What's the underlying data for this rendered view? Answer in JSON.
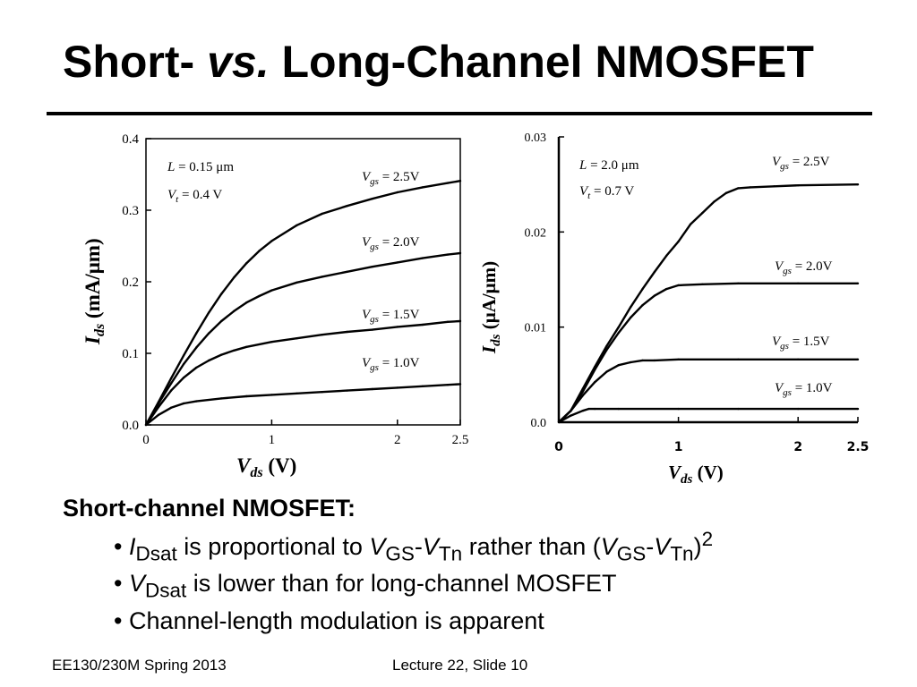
{
  "title": {
    "part1": "Short- ",
    "part2": "vs.",
    "part3": " Long-Channel NMOSFET"
  },
  "chart_data": [
    {
      "type": "line",
      "title": "",
      "xlabel": {
        "main": "V",
        "sub": "ds",
        "unit": " (V)"
      },
      "ylabel": {
        "main": "I",
        "sub": "ds",
        "unit": " (mA/μm)"
      },
      "xlim": [
        0,
        2.5
      ],
      "ylim": [
        0,
        0.4
      ],
      "x_ticks": [
        0,
        1,
        2,
        2.5
      ],
      "x_tick_labels": [
        "0",
        "1",
        "2",
        "2.5"
      ],
      "y_ticks": [
        0,
        0.1,
        0.2,
        0.3,
        0.4
      ],
      "y_tick_labels": [
        "0.0",
        "0.1",
        "0.2",
        "0.3",
        "0.4"
      ],
      "annotations": [
        "L = 0.15 μm",
        "V_t = 0.4 V"
      ],
      "series": [
        {
          "name": "Vgs = 2.5V",
          "x": [
            0,
            0.1,
            0.2,
            0.3,
            0.4,
            0.5,
            0.6,
            0.7,
            0.8,
            0.9,
            1.0,
            1.2,
            1.4,
            1.6,
            1.8,
            2.0,
            2.2,
            2.4,
            2.5
          ],
          "y": [
            0,
            0.032,
            0.065,
            0.097,
            0.128,
            0.157,
            0.183,
            0.206,
            0.226,
            0.243,
            0.257,
            0.279,
            0.295,
            0.306,
            0.316,
            0.325,
            0.332,
            0.338,
            0.341
          ]
        },
        {
          "name": "Vgs = 2.0V",
          "x": [
            0,
            0.1,
            0.2,
            0.3,
            0.4,
            0.5,
            0.6,
            0.7,
            0.8,
            0.9,
            1.0,
            1.2,
            1.4,
            1.6,
            1.8,
            2.0,
            2.2,
            2.4,
            2.5
          ],
          "y": [
            0,
            0.03,
            0.058,
            0.085,
            0.108,
            0.128,
            0.145,
            0.159,
            0.171,
            0.18,
            0.188,
            0.199,
            0.207,
            0.214,
            0.221,
            0.227,
            0.233,
            0.238,
            0.24
          ]
        },
        {
          "name": "Vgs = 1.5V",
          "x": [
            0,
            0.1,
            0.2,
            0.3,
            0.4,
            0.5,
            0.6,
            0.7,
            0.8,
            1.0,
            1.2,
            1.4,
            1.6,
            1.8,
            2.0,
            2.2,
            2.4,
            2.5
          ],
          "y": [
            0,
            0.025,
            0.048,
            0.066,
            0.08,
            0.09,
            0.098,
            0.104,
            0.109,
            0.116,
            0.121,
            0.126,
            0.13,
            0.133,
            0.137,
            0.14,
            0.144,
            0.145
          ]
        },
        {
          "name": "Vgs = 1.0V",
          "x": [
            0,
            0.1,
            0.2,
            0.3,
            0.4,
            0.6,
            0.8,
            1.0,
            1.2,
            1.4,
            1.6,
            1.8,
            2.0,
            2.2,
            2.4,
            2.5
          ],
          "y": [
            0,
            0.014,
            0.024,
            0.03,
            0.033,
            0.037,
            0.04,
            0.042,
            0.044,
            0.046,
            0.048,
            0.05,
            0.052,
            0.054,
            0.056,
            0.057
          ]
        }
      ]
    },
    {
      "type": "line",
      "title": "",
      "xlabel": {
        "main": "V",
        "sub": "ds",
        "unit": " (V)"
      },
      "ylabel": {
        "main": "I",
        "sub": "ds",
        "unit": " (μA/μm)"
      },
      "xlim": [
        0,
        2.5
      ],
      "ylim": [
        0,
        0.03
      ],
      "x_ticks": [
        0,
        1,
        2,
        2.5
      ],
      "x_tick_labels": [
        "0",
        "1",
        "2",
        "2.5"
      ],
      "y_ticks": [
        0,
        0.01,
        0.02,
        0.03
      ],
      "y_tick_labels": [
        "0.0",
        "0.01",
        "0.02",
        "0.03"
      ],
      "annotations": [
        "L = 2.0 μm",
        "V_t = 0.7 V"
      ],
      "series": [
        {
          "name": "Vgs = 2.5V",
          "x": [
            0,
            0.1,
            0.2,
            0.3,
            0.4,
            0.5,
            0.6,
            0.7,
            0.8,
            0.9,
            1.0,
            1.1,
            1.2,
            1.3,
            1.4,
            1.5,
            1.6,
            1.8,
            2.0,
            2.5
          ],
          "y": [
            0,
            0.0012,
            0.0035,
            0.0058,
            0.008,
            0.01,
            0.0121,
            0.014,
            0.0158,
            0.0175,
            0.019,
            0.0208,
            0.022,
            0.0232,
            0.0241,
            0.0246,
            0.0247,
            0.0248,
            0.0249,
            0.025
          ]
        },
        {
          "name": "Vgs = 2.0V",
          "x": [
            0,
            0.1,
            0.2,
            0.3,
            0.4,
            0.5,
            0.6,
            0.7,
            0.8,
            0.9,
            1.0,
            1.2,
            1.5,
            2.0,
            2.5
          ],
          "y": [
            0,
            0.0012,
            0.0032,
            0.0055,
            0.0076,
            0.0094,
            0.011,
            0.0123,
            0.0133,
            0.014,
            0.0144,
            0.0145,
            0.0146,
            0.0146,
            0.0146
          ]
        },
        {
          "name": "Vgs = 1.5V",
          "x": [
            0,
            0.1,
            0.2,
            0.3,
            0.4,
            0.5,
            0.6,
            0.7,
            0.8,
            1.0,
            1.5,
            2.0,
            2.5
          ],
          "y": [
            0,
            0.0012,
            0.0028,
            0.0042,
            0.0053,
            0.006,
            0.0063,
            0.0065,
            0.0065,
            0.0066,
            0.0066,
            0.0066,
            0.0066
          ]
        },
        {
          "name": "Vgs = 1.0V",
          "x": [
            0,
            0.1,
            0.2,
            0.25,
            0.3,
            0.5,
            1.0,
            1.5,
            2.0,
            2.5
          ],
          "y": [
            0,
            0.0007,
            0.0012,
            0.0014,
            0.0014,
            0.0014,
            0.0014,
            0.0014,
            0.0014,
            0.0014
          ]
        }
      ]
    }
  ],
  "legend_labels": {
    "left": [
      {
        "v": "V",
        "sub": "gs",
        "val": " = 2.5V"
      },
      {
        "v": "V",
        "sub": "gs",
        "val": " = 2.0V"
      },
      {
        "v": "V",
        "sub": "gs",
        "val": " = 1.5V"
      },
      {
        "v": "V",
        "sub": "gs",
        "val": " = 1.0V"
      }
    ],
    "right": [
      {
        "v": "V",
        "sub": "gs",
        "val": " = 2.5V"
      },
      {
        "v": "V",
        "sub": "gs",
        "val": " = 2.0V"
      },
      {
        "v": "V",
        "sub": "gs",
        "val": " = 1.5V"
      },
      {
        "v": "V",
        "sub": "gs",
        "val": " = 1.0V"
      }
    ]
  },
  "params": {
    "left": {
      "l_main": "L",
      "l_val": " = 0.15 μm",
      "vt_main": "V",
      "vt_sub": "t",
      "vt_val": " = 0.4 V"
    },
    "right": {
      "l_main": "L",
      "l_val": " = 2.0 μm",
      "vt_main": "V",
      "vt_sub": "t",
      "vt_val": " = 0.7 V"
    }
  },
  "body": {
    "heading": "Short-channel NMOSFET:",
    "bullet1": {
      "dot": "• ",
      "i": "I",
      "i_sub": "Dsat",
      "t1": " is proportional to ",
      "v1": "V",
      "v1_sub": "GS",
      "dash1": "-",
      "v2": "V",
      "v2_sub": "Tn",
      "t2": " rather than (",
      "v3": "V",
      "v3_sub": "GS",
      "dash2": "-",
      "v4": "V",
      "v4_sub": "Tn",
      "close": ")",
      "sup": "2"
    },
    "bullet2": {
      "dot": "• ",
      "v": "V",
      "v_sub": "Dsat",
      "t": " is lower than for long-channel MOSFET"
    },
    "bullet3": {
      "text": "• Channel-length modulation is apparent"
    }
  },
  "footer": {
    "left": "EE130/230M Spring 2013",
    "center": "Lecture 22, Slide 10"
  }
}
